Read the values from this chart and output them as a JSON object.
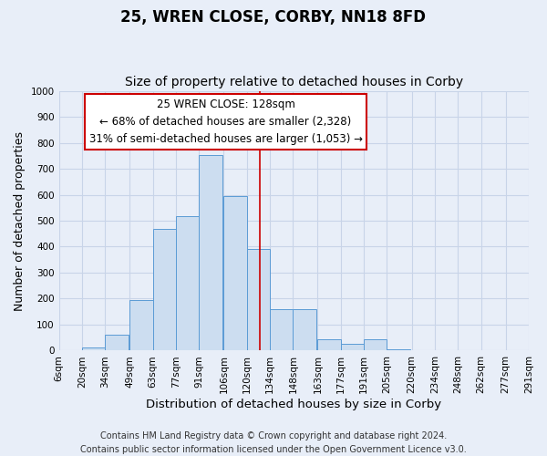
{
  "title": "25, WREN CLOSE, CORBY, NN18 8FD",
  "subtitle": "Size of property relative to detached houses in Corby",
  "xlabel": "Distribution of detached houses by size in Corby",
  "ylabel": "Number of detached properties",
  "bins": [
    "6sqm",
    "20sqm",
    "34sqm",
    "49sqm",
    "63sqm",
    "77sqm",
    "91sqm",
    "106sqm",
    "120sqm",
    "134sqm",
    "148sqm",
    "163sqm",
    "177sqm",
    "191sqm",
    "205sqm",
    "220sqm",
    "234sqm",
    "248sqm",
    "262sqm",
    "277sqm",
    "291sqm"
  ],
  "bar_values": [
    0,
    13,
    62,
    196,
    470,
    518,
    754,
    596,
    390,
    160,
    160,
    42,
    25,
    42,
    5,
    0,
    0,
    0,
    0,
    0
  ],
  "bar_left_edges": [
    6,
    20,
    34,
    49,
    63,
    77,
    91,
    106,
    120,
    134,
    148,
    163,
    177,
    191,
    205,
    220,
    234,
    248,
    262,
    277
  ],
  "bar_color": "#ccddf0",
  "bar_edgecolor": "#5b9bd5",
  "vline_x": 128,
  "vline_color": "#cc0000",
  "ylim": [
    0,
    1000
  ],
  "yticks": [
    0,
    100,
    200,
    300,
    400,
    500,
    600,
    700,
    800,
    900,
    1000
  ],
  "annotation_title": "25 WREN CLOSE: 128sqm",
  "annotation_line1": "← 68% of detached houses are smaller (2,328)",
  "annotation_line2": "31% of semi-detached houses are larger (1,053) →",
  "annotation_box_color": "#ffffff",
  "annotation_box_edgecolor": "#cc0000",
  "footer_line1": "Contains HM Land Registry data © Crown copyright and database right 2024.",
  "footer_line2": "Contains public sector information licensed under the Open Government Licence v3.0.",
  "background_color": "#e8eef8",
  "plot_bg_color": "#e8eef8",
  "grid_color": "#c8d4e8",
  "title_fontsize": 12,
  "subtitle_fontsize": 10,
  "xlabel_fontsize": 9.5,
  "ylabel_fontsize": 9,
  "tick_fontsize": 7.5,
  "footer_fontsize": 7,
  "ann_fontsize": 8.5
}
